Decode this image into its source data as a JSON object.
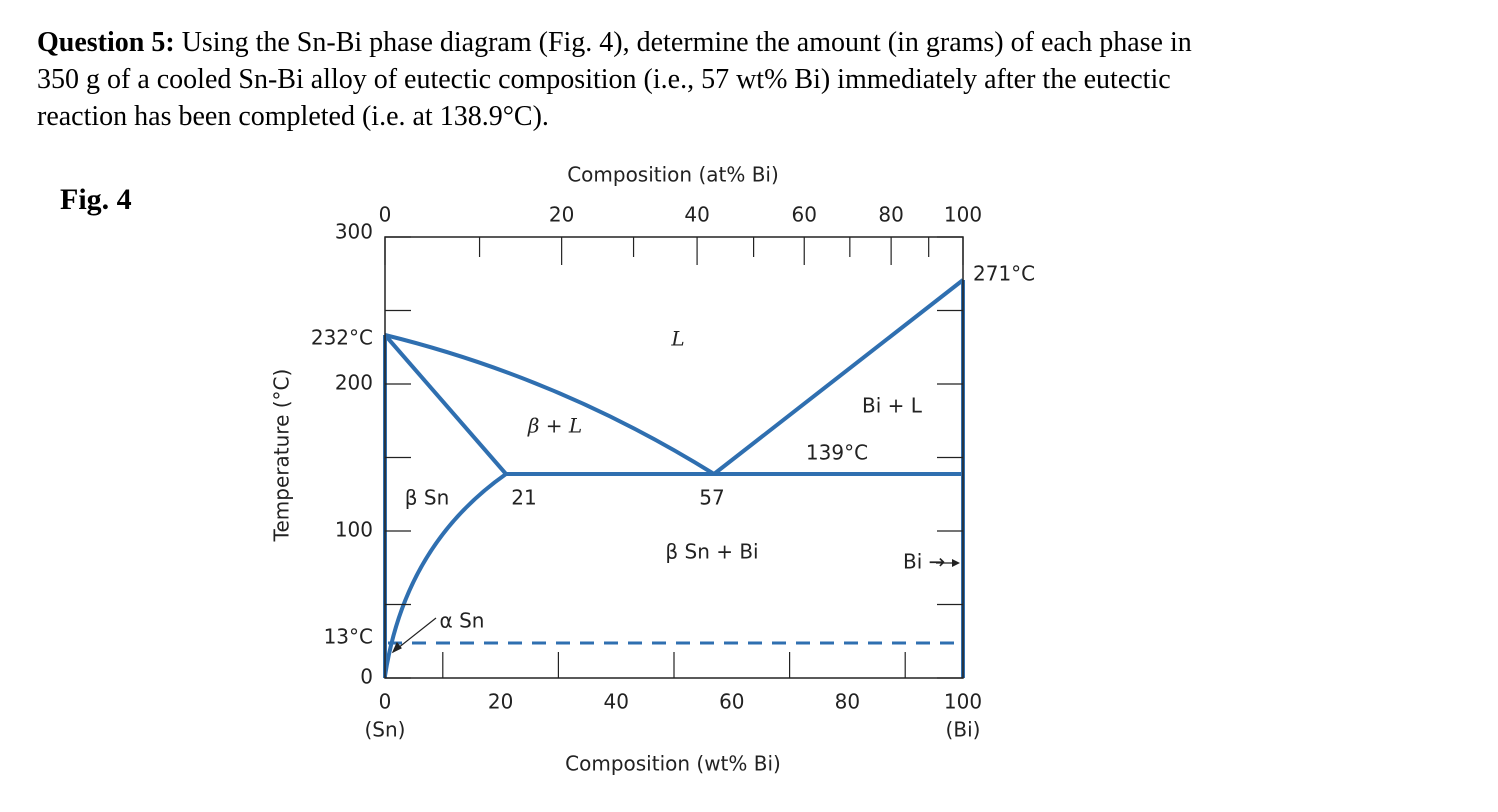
{
  "question": {
    "label": "Question 5:",
    "lines": [
      "Using the Sn-Bi phase diagram (Fig. 4), determine the amount (in grams) of each phase in",
      "350 g of a cooled Sn-Bi alloy of eutectic composition (i.e., 57 wt% Bi) immediately after the eutectic",
      "reaction has been completed (i.e. at 138.9°C)."
    ]
  },
  "figure": {
    "label": "Fig. 4",
    "top_axis": {
      "title": "Composition (at% Bi)",
      "ticks": [
        0,
        20,
        40,
        60,
        80,
        100
      ]
    },
    "bottom_axis": {
      "title": "Composition (wt% Bi)",
      "ticks": [
        0,
        20,
        40,
        60,
        80,
        100
      ],
      "end_labels": [
        "(Sn)",
        "(Bi)"
      ]
    },
    "left_axis": {
      "title": "Temperature (°C)",
      "ticks": [
        0,
        100,
        200,
        300
      ],
      "markers": [
        "232°C",
        "13°C"
      ]
    },
    "annotations": [
      "L",
      "β + L",
      "Bi + L",
      "271°C",
      "139°C",
      "β Sn",
      "21",
      "57",
      "β Sn + Bi",
      "Bi →",
      "α Sn"
    ]
  }
}
